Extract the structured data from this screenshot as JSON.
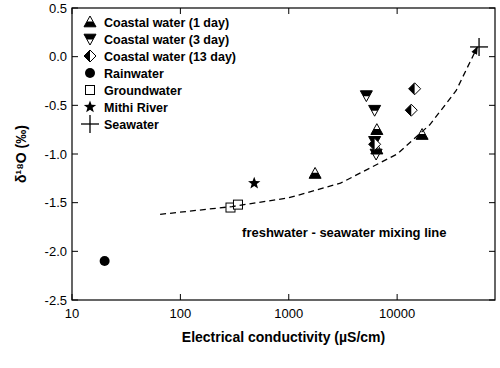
{
  "chart_data": {
    "type": "scatter",
    "x_label": "Electrical conductivity (µS/cm)",
    "y_label": "δ¹⁸O (‰)",
    "log": "x",
    "xlim": [
      10,
      80000
    ],
    "xticks": [
      10,
      100,
      1000,
      10000
    ],
    "ylim": [
      -2.5,
      0.5
    ],
    "yticks": [
      -2.5,
      {
        "value": -2.0,
        "label": "-2.0"
      },
      -1.5,
      {
        "value": -1.0,
        "label": "-1.0"
      },
      -0.5,
      {
        "value": 0,
        "label": "0.0"
      },
      0.5
    ],
    "grid": false,
    "legend": "upper-left",
    "series": [
      {
        "name": "Coastal water (1 day)",
        "color": "#000000",
        "marker": "triangle-up-half",
        "x": [
          1750,
          6500,
          6500,
          17000
        ],
        "values": [
          -1.2,
          -0.75,
          -0.95,
          -0.8
        ]
      },
      {
        "name": "Coastal water (3 day)",
        "color": "#000000",
        "marker": "triangle-down-half",
        "x": [
          5200,
          6200,
          6200,
          6400
        ],
        "values": [
          -0.4,
          -0.55,
          -0.87,
          -1.0
        ]
      },
      {
        "name": "Coastal water (13 day)",
        "color": "#000000",
        "marker": "diamond-half",
        "x": [
          14500,
          13500,
          6200
        ],
        "values": [
          -0.33,
          -0.55,
          -0.9
        ]
      },
      {
        "name": "Rainwater",
        "color": "#000000",
        "marker": "circle",
        "x": [
          20
        ],
        "values": [
          -2.1
        ]
      },
      {
        "name": "Groundwater",
        "color": "#000000",
        "marker": "square-open",
        "x": [
          290,
          340
        ],
        "values": [
          -1.55,
          -1.52
        ]
      },
      {
        "name": "Mithi River",
        "color": "#000000",
        "marker": "star",
        "x": [
          480
        ],
        "values": [
          -1.3
        ]
      },
      {
        "name": "Seawater",
        "color": "#000000",
        "marker": "cross",
        "x": [
          57000
        ],
        "values": [
          0.1
        ]
      },
      {
        "name": "freshwater - seawater mixing line",
        "type": "line",
        "line_style": "dashed",
        "color": "#000000",
        "x": [
          65,
          300,
          1000,
          3000,
          10000,
          20000,
          35000,
          55000
        ],
        "values": [
          -1.62,
          -1.54,
          -1.45,
          -1.3,
          -1.0,
          -0.7,
          -0.35,
          0.1
        ]
      }
    ]
  }
}
